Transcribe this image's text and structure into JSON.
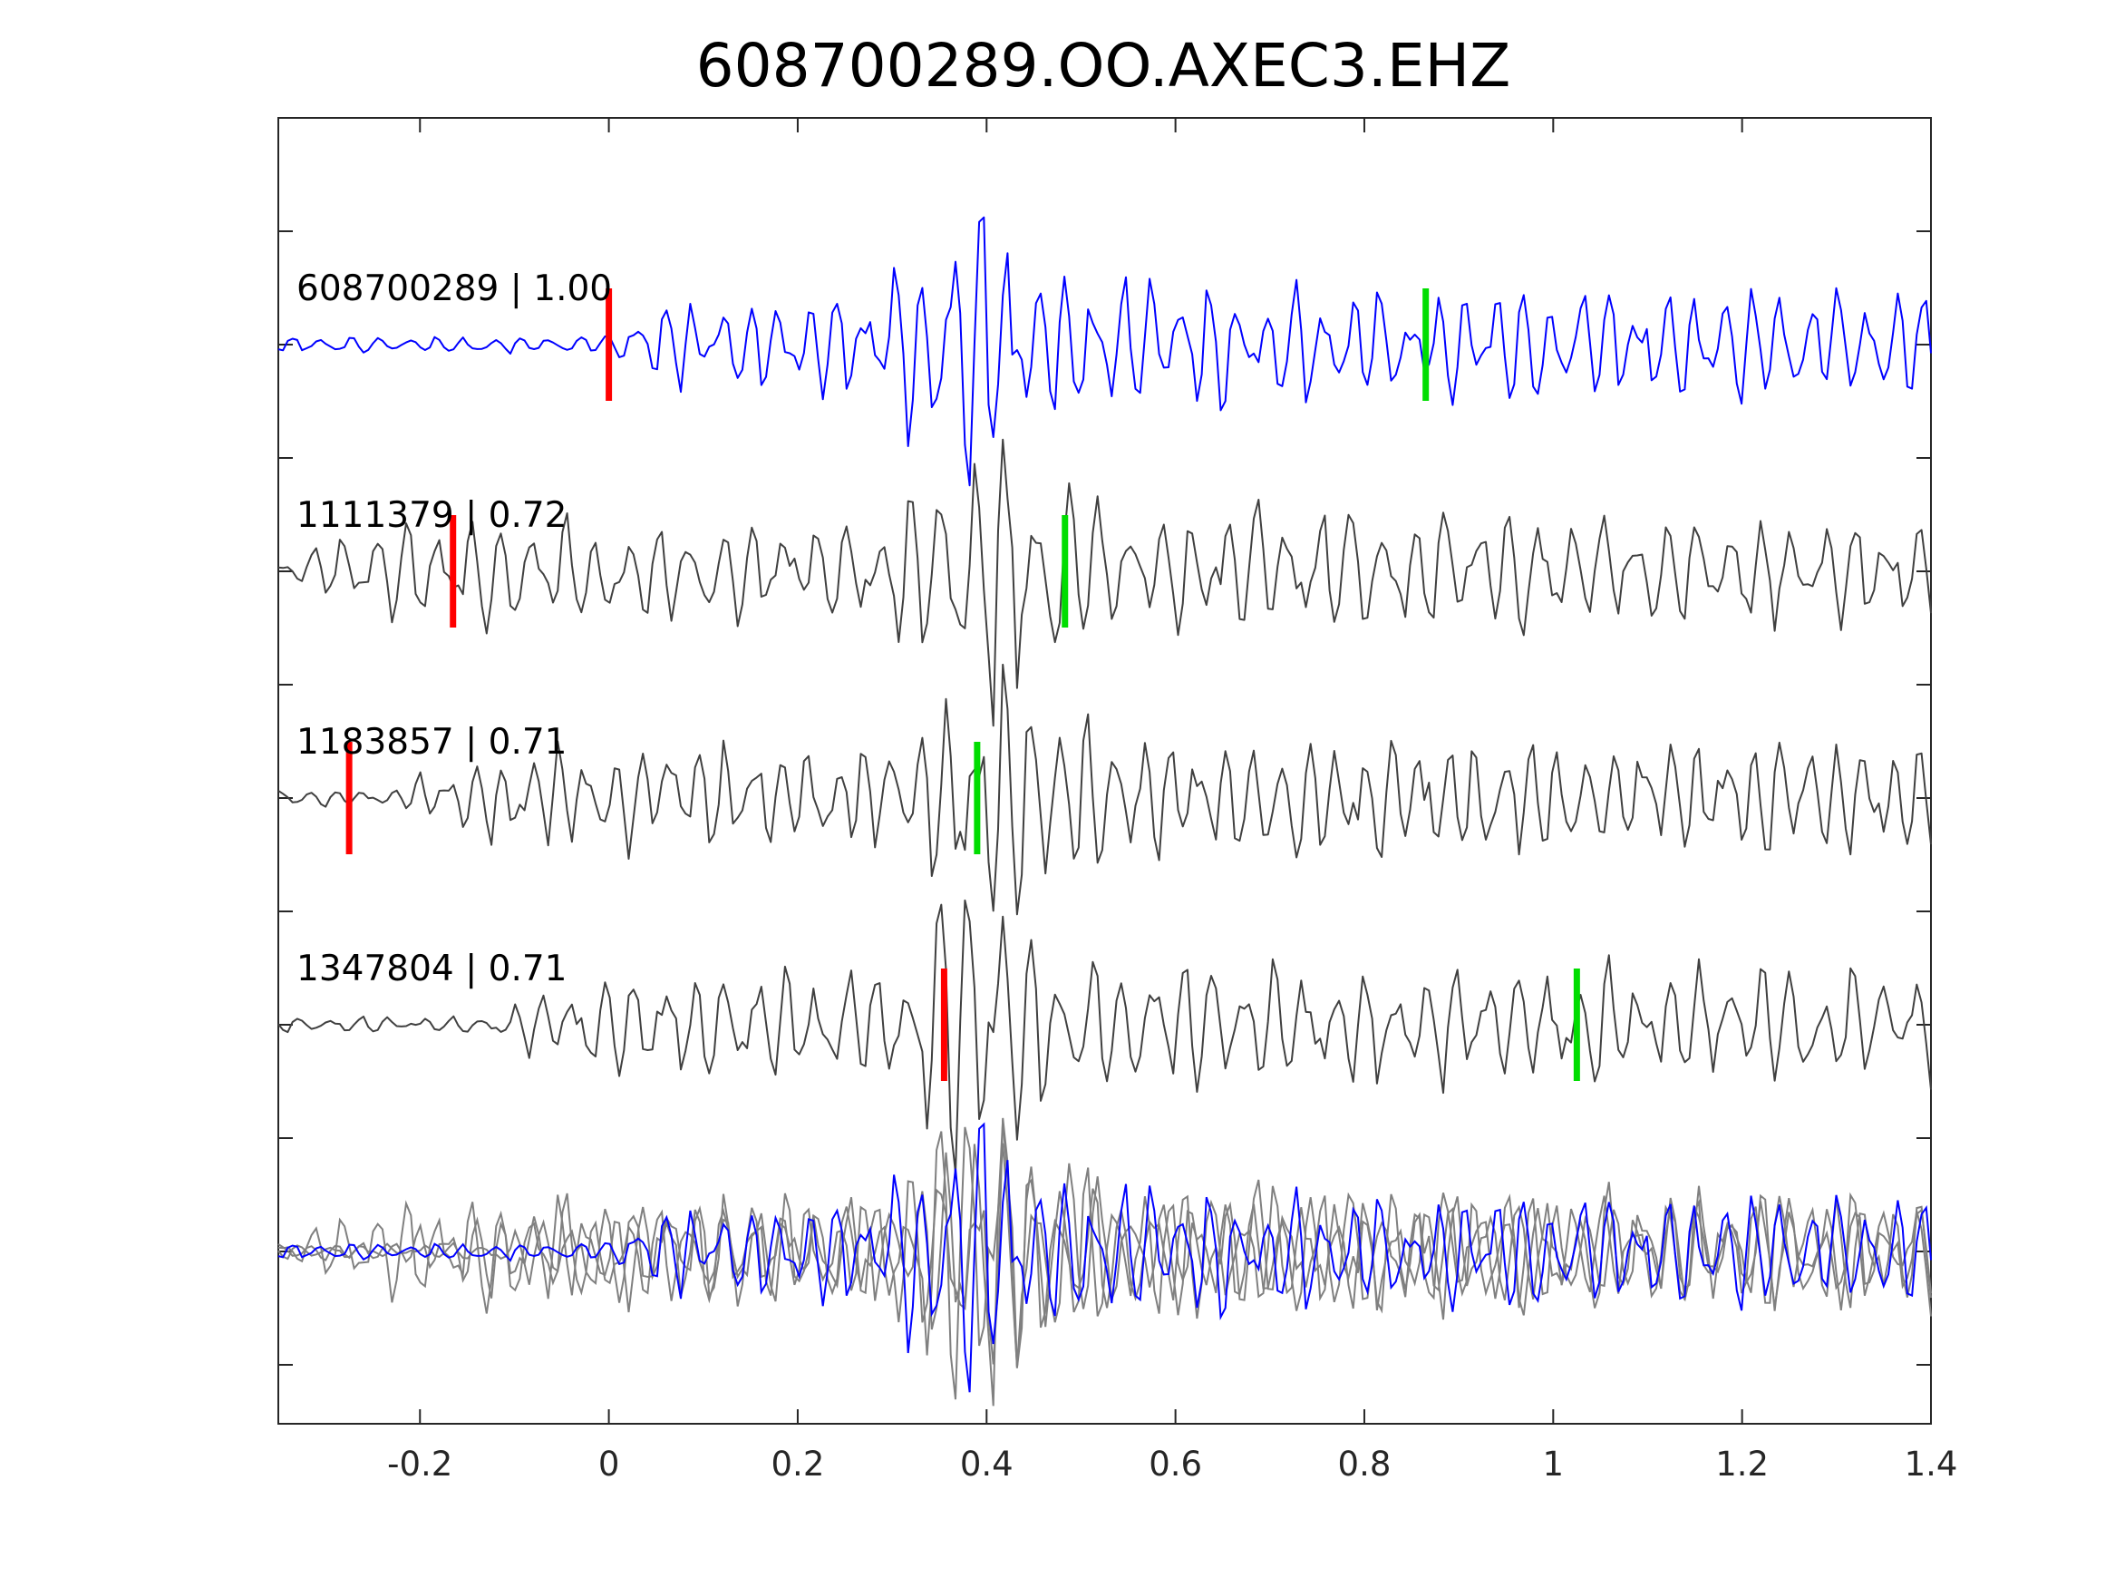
{
  "chart_data": {
    "type": "line",
    "title": "608700289.OO.AXEC3.EHZ",
    "xlabel": "",
    "ylabel": "",
    "xlim": [
      -0.35,
      1.4
    ],
    "x_ticks": [
      -0.2,
      0,
      0.2,
      0.4,
      0.6,
      0.8,
      1,
      1.2,
      1.4
    ],
    "x_tick_labels": [
      "-0.2",
      "0",
      "0.2",
      "0.4",
      "0.6",
      "0.8",
      "1",
      "1.2",
      "1.4"
    ],
    "y_tick_labels_shown": false,
    "grid": false,
    "legend": "none",
    "colors": {
      "master": "#0000ff",
      "match": "#404040",
      "stack_match": "#808080",
      "p_pick": "#ff0000",
      "s_pick": "#00dd00",
      "axes": "#262626"
    },
    "traces": [
      {
        "label": "608700289 | 1.00",
        "id": "608700289",
        "cc": 1.0,
        "role": "master",
        "p_pick": 0.0,
        "s_pick": 0.865,
        "onset": 0.0,
        "peak_time": 0.38
      },
      {
        "label": "1111379 | 0.72",
        "id": "1111379",
        "cc": 0.72,
        "role": "match",
        "p_pick": -0.165,
        "s_pick": 0.483,
        "onset": -0.33,
        "peak_time": 0.4
      },
      {
        "label": "1183857 | 0.71",
        "id": "1183857",
        "cc": 0.71,
        "role": "match",
        "p_pick": -0.275,
        "s_pick": 0.39,
        "onset": -0.22,
        "peak_time": 0.42
      },
      {
        "label": "1347804 | 0.71",
        "id": "1347804",
        "cc": 0.71,
        "role": "match",
        "p_pick": 0.355,
        "s_pick": 1.025,
        "onset": -0.12,
        "peak_time": 0.385
      }
    ],
    "stack": {
      "description_shown": false,
      "includes": [
        "608700289",
        "1111379",
        "1183857",
        "1347804"
      ]
    }
  }
}
